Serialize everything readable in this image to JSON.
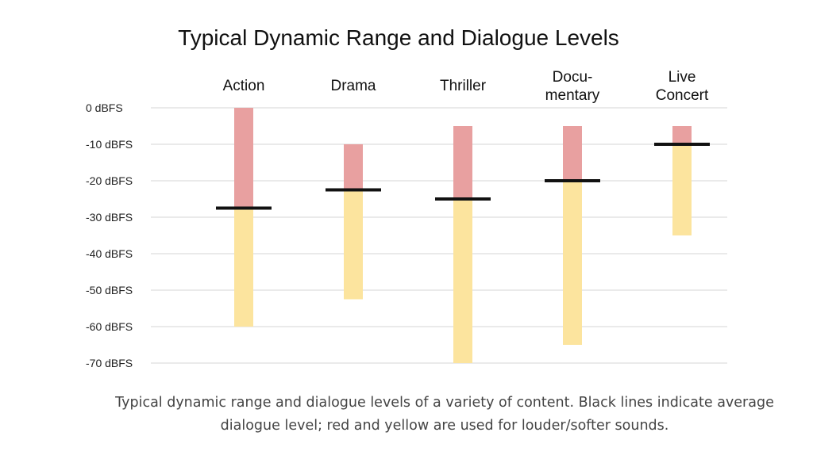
{
  "chart_data": {
    "type": "bar",
    "title": "Typical Dynamic Range and Dialogue Levels",
    "categories": [
      [
        "Action"
      ],
      [
        "Drama"
      ],
      [
        "Thriller"
      ],
      [
        "Docu-",
        "mentary"
      ],
      [
        "Live",
        "Concert"
      ]
    ],
    "y_ticks": [
      {
        "value": 0,
        "label": "0 dBFS"
      },
      {
        "value": -10,
        "label": "-10 dBFS"
      },
      {
        "value": -20,
        "label": "-20 dBFS"
      },
      {
        "value": -30,
        "label": "-30 dBFS"
      },
      {
        "value": -40,
        "label": "-40 dBFS"
      },
      {
        "value": -50,
        "label": "-50 dBFS"
      },
      {
        "value": -60,
        "label": "-60 dBFS"
      },
      {
        "value": -70,
        "label": "-70 dBFS"
      }
    ],
    "ylim": [
      -70,
      0
    ],
    "grid": true,
    "series": [
      {
        "kind": "louder",
        "color": "#e8a0a0",
        "ranges": [
          [
            -27.5,
            0
          ],
          [
            -22.5,
            -10
          ],
          [
            -25,
            -5
          ],
          [
            -20,
            -5
          ],
          [
            -10,
            -5
          ]
        ]
      },
      {
        "kind": "softer",
        "color": "#fce49e",
        "ranges": [
          [
            -60,
            -27.5
          ],
          [
            -52.5,
            -22.5
          ],
          [
            -70,
            -25
          ],
          [
            -65,
            -20
          ],
          [
            -35,
            -10
          ]
        ]
      },
      {
        "kind": "dialogue",
        "color": "#111111",
        "values": [
          -27.5,
          -22.5,
          -25,
          -20,
          -10
        ]
      }
    ],
    "caption": [
      "Typical dynamic range and dialogue levels of a variety of content. Black lines indicate average",
      "dialogue level; red and yellow are used for louder/softer sounds."
    ]
  }
}
